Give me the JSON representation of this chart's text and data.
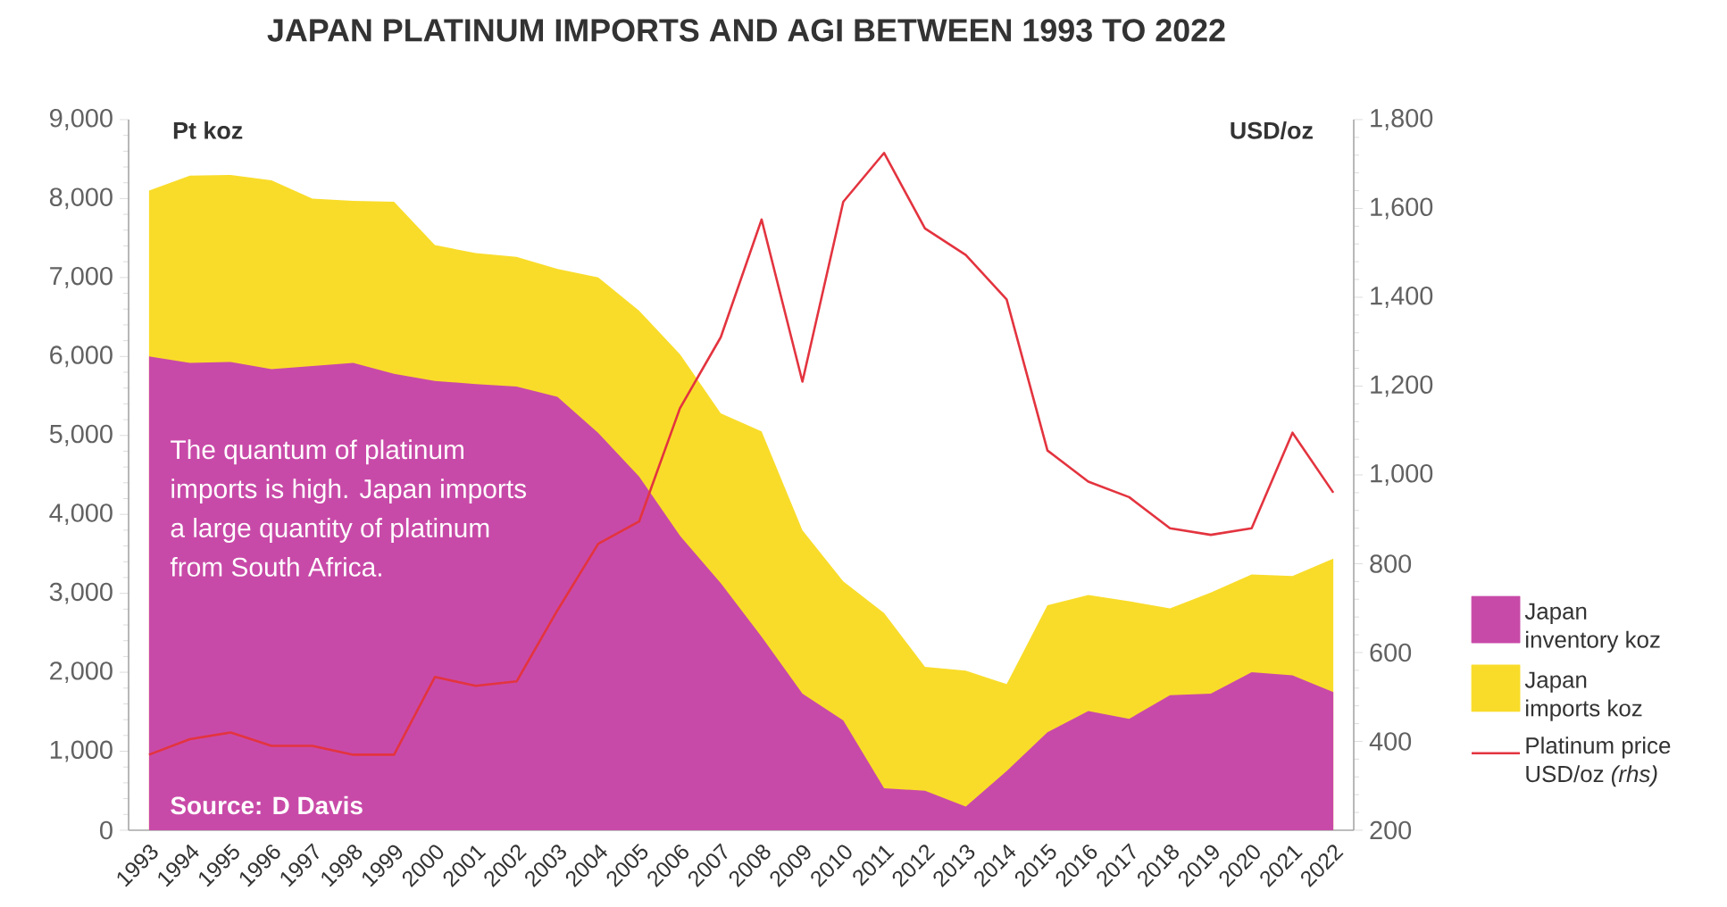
{
  "chart_data": {
    "type": "area",
    "title": "JAPAN PLATINUM IMPORTS AND AGI BETWEEN 1993 TO 2022",
    "ylabel": "Pt koz",
    "y2label": "USD/oz",
    "annotations": [
      "The quantum of platinum imports is high. Japan imports a large quantity of platinum from South Africa.",
      "Source: D Davis"
    ],
    "categories": [
      "1993",
      "1994",
      "1995",
      "1996",
      "1997",
      "1998",
      "1999",
      "2000",
      "2001",
      "2002",
      "2003",
      "2004",
      "2005",
      "2006",
      "2007",
      "2008",
      "2009",
      "2010",
      "2011",
      "2012",
      "2013",
      "2014",
      "2015",
      "2016",
      "2017",
      "2018",
      "2019",
      "2020",
      "2021",
      "2022"
    ],
    "series": [
      {
        "name": "Japan inventory koz",
        "color": "#c84aa8",
        "values": [
          6000,
          5920,
          5930,
          5840,
          5880,
          5920,
          5780,
          5690,
          5650,
          5620,
          5490,
          5030,
          4480,
          3730,
          3130,
          2450,
          1730,
          1390,
          530,
          500,
          300,
          750,
          1240,
          1510,
          1410,
          1710,
          1730,
          2000,
          1960,
          1750
        ]
      },
      {
        "name": "Japan imports koz",
        "color": "#f9dc2a",
        "values": [
          8100,
          8290,
          8300,
          8230,
          8000,
          7970,
          7960,
          7410,
          7310,
          7260,
          7110,
          7000,
          6580,
          6030,
          5280,
          5050,
          3800,
          3150,
          2750,
          2070,
          2020,
          1850,
          2850,
          2980,
          2900,
          2810,
          3010,
          3240,
          3220,
          3440
        ]
      },
      {
        "name": "Platinum price USD/oz *(rhs)*",
        "type": "line",
        "axis": "y2",
        "color": "#e3343f",
        "values": [
          370,
          405,
          420,
          390,
          390,
          370,
          370,
          545,
          525,
          535,
          695,
          845,
          895,
          1150,
          1310,
          1575,
          1210,
          1615,
          1725,
          1555,
          1495,
          1395,
          1055,
          985,
          950,
          880,
          865,
          880,
          1095,
          960
        ]
      }
    ],
    "ylim": [
      0,
      9000
    ],
    "yticks": [
      0,
      {
        "value": 1000,
        "label": "1,000"
      },
      {
        "value": 2000,
        "label": "2,000"
      },
      {
        "value": 3000,
        "label": "3,000"
      },
      {
        "value": 4000,
        "label": "4,000"
      },
      {
        "value": 5000,
        "label": "5,000"
      },
      {
        "value": 6000,
        "label": "6,000"
      },
      {
        "value": 7000,
        "label": "7,000"
      },
      {
        "value": 8000,
        "label": "8,000"
      },
      {
        "value": 9000,
        "label": "9,000"
      }
    ],
    "y2lim": [
      200,
      1800
    ],
    "y2ticks": [
      200,
      400,
      600,
      800,
      {
        "value": 1000,
        "label": "1,000"
      },
      {
        "value": 1200,
        "label": "1,200"
      },
      {
        "value": 1400,
        "label": "1,400"
      },
      {
        "value": 1600,
        "label": "1,600"
      },
      {
        "value": 1800,
        "label": "1,800"
      }
    ],
    "legend": "right"
  }
}
